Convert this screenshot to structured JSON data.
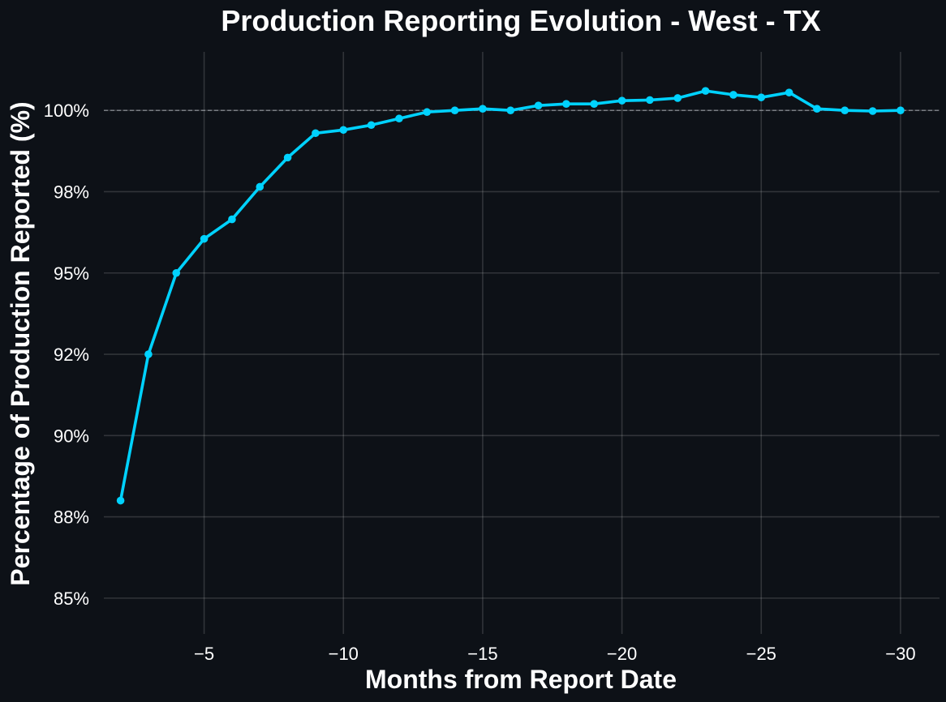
{
  "colors": {
    "background": "#0d1117",
    "line": "#00d2ff",
    "grid": "#ffffff",
    "reference_line": "#9aa0a6",
    "text": "#ffffff"
  },
  "chart_data": {
    "type": "line",
    "title": "Production Reporting Evolution - West - TX",
    "xlabel": "Months from Report Date",
    "ylabel": "Percentage of Production Reported (%)",
    "xlim": [
      -1.4,
      -31.4
    ],
    "ylim": [
      83.9,
      101.8
    ],
    "x_ticks": [
      -5,
      -10,
      -15,
      -20,
      -25,
      -30
    ],
    "x_tick_labels": [
      "−5",
      "−10",
      "−15",
      "−20",
      "−25",
      "−30"
    ],
    "y_ticks": [
      85,
      87.5,
      90,
      92.5,
      95,
      97.5,
      100
    ],
    "y_tick_labels": [
      "85%",
      "88%",
      "90%",
      "92%",
      "95%",
      "98%",
      "100%"
    ],
    "grid": true,
    "reference_line_y": 100,
    "series": [
      {
        "x": [
          -2,
          -3,
          -4,
          -5,
          -6,
          -7,
          -8,
          -9,
          -10,
          -11,
          -12,
          -13,
          -14,
          -15,
          -16,
          -17,
          -18,
          -19,
          -20,
          -21,
          -22,
          -23,
          -24,
          -25,
          -26,
          -27,
          -28,
          -29,
          -30
        ],
        "values": [
          88.0,
          92.5,
          95.0,
          96.05,
          96.65,
          97.65,
          98.55,
          99.3,
          99.4,
          99.55,
          99.75,
          99.95,
          100.0,
          100.05,
          100.0,
          100.15,
          100.2,
          100.2,
          100.3,
          100.32,
          100.38,
          100.6,
          100.48,
          100.4,
          100.55,
          100.05,
          100.0,
          99.98,
          100.0
        ]
      }
    ]
  }
}
